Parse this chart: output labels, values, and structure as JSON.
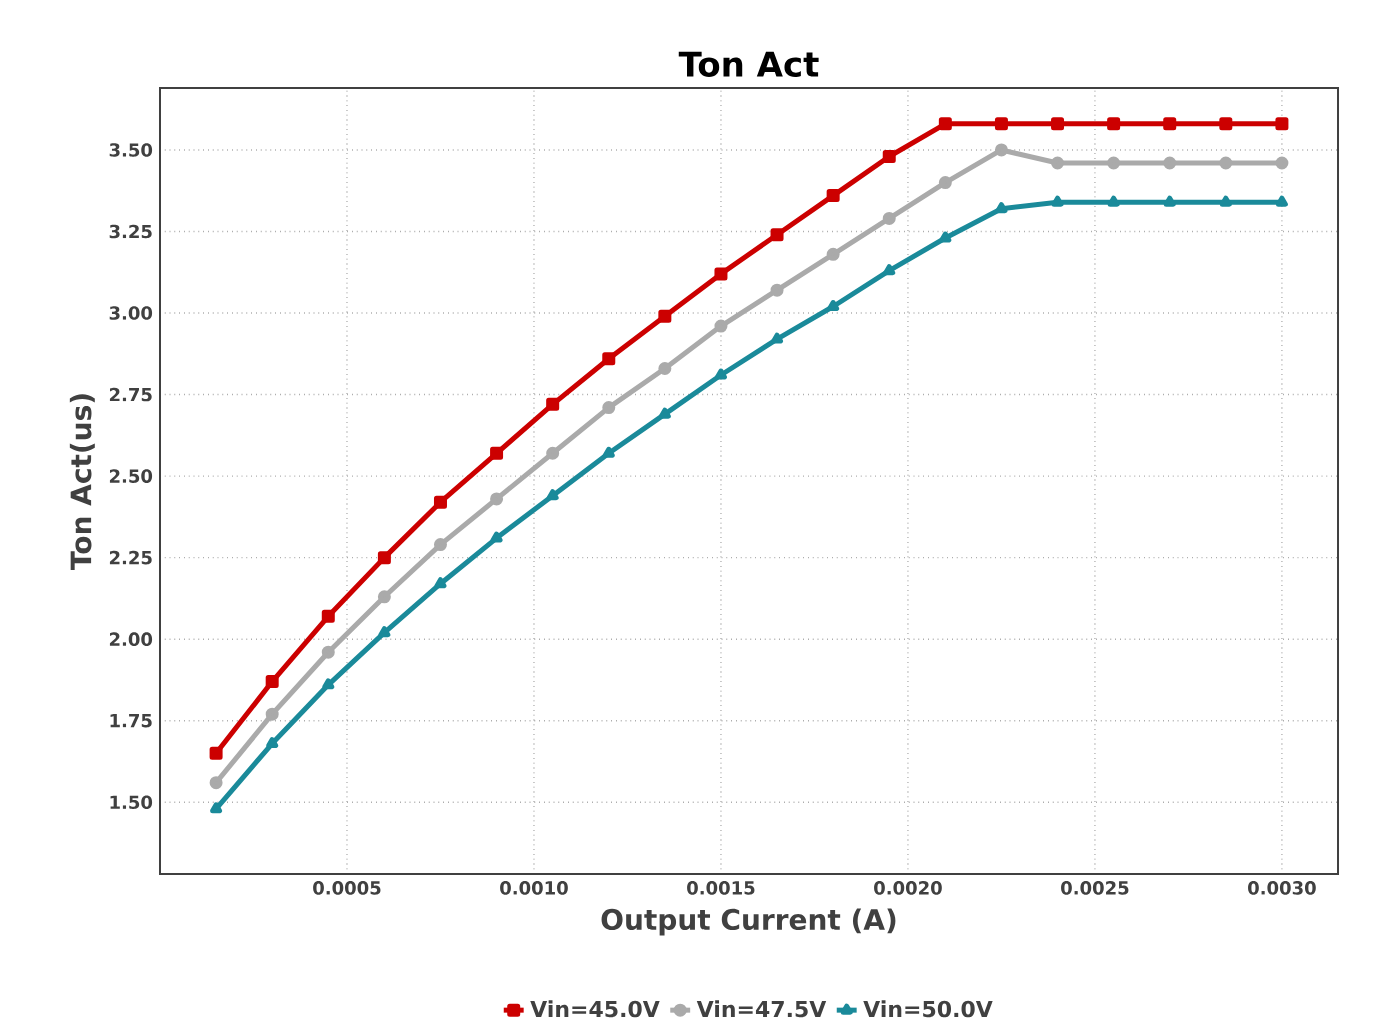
{
  "chart_data": {
    "type": "line",
    "title": "Ton Act",
    "xlabel": "Output Current (A)",
    "ylabel": "Ton Act(us)",
    "x": [
      0.00015,
      0.0003,
      0.00045,
      0.0006,
      0.00075,
      0.0009,
      0.00105,
      0.0012,
      0.00135,
      0.0015,
      0.00165,
      0.0018,
      0.00195,
      0.0021,
      0.00225,
      0.0024,
      0.00255,
      0.0027,
      0.00285,
      0.003
    ],
    "series": [
      {
        "name": "Vin=45.0V",
        "color": "#cc0000",
        "marker": "square",
        "values": [
          1.65,
          1.87,
          2.07,
          2.25,
          2.42,
          2.57,
          2.72,
          2.86,
          2.99,
          3.12,
          3.24,
          3.36,
          3.48,
          3.58,
          3.58,
          3.58,
          3.58,
          3.58,
          3.58,
          3.58
        ]
      },
      {
        "name": "Vin=47.5V",
        "color": "#aaaaaa",
        "marker": "circle",
        "values": [
          1.56,
          1.77,
          1.96,
          2.13,
          2.29,
          2.43,
          2.57,
          2.71,
          2.83,
          2.96,
          3.07,
          3.18,
          3.29,
          3.4,
          3.5,
          3.46,
          3.46,
          3.46,
          3.46,
          3.46
        ]
      },
      {
        "name": "Vin=50.0V",
        "color": "#1a8a9a",
        "marker": "triangle",
        "values": [
          1.48,
          1.68,
          1.86,
          2.02,
          2.17,
          2.31,
          2.44,
          2.57,
          2.69,
          2.81,
          2.92,
          3.02,
          3.13,
          3.23,
          3.32,
          3.34,
          3.34,
          3.34,
          3.34,
          3.34
        ]
      }
    ],
    "xlim": [
      0,
      0.00315
    ],
    "ylim": [
      1.28,
      3.69
    ],
    "xticks": [
      {
        "value": 0.0005,
        "label": "0.0005"
      },
      {
        "value": 0.001,
        "label": "0.0010"
      },
      {
        "value": 0.0015,
        "label": "0.0015"
      },
      {
        "value": 0.002,
        "label": "0.0020"
      },
      {
        "value": 0.0025,
        "label": "0.0025"
      },
      {
        "value": 0.003,
        "label": "0.0030"
      }
    ],
    "yticks": [
      {
        "value": 1.5,
        "label": "1.50"
      },
      {
        "value": 1.75,
        "label": "1.75"
      },
      {
        "value": 2.0,
        "label": "2.00"
      },
      {
        "value": 2.25,
        "label": "2.25"
      },
      {
        "value": 2.5,
        "label": "2.50"
      },
      {
        "value": 2.75,
        "label": "2.75"
      },
      {
        "value": 3.0,
        "label": "3.00"
      },
      {
        "value": 3.25,
        "label": "3.25"
      },
      {
        "value": 3.5,
        "label": "3.50"
      }
    ],
    "grid": true,
    "legend": "bottom",
    "line_style": "solid"
  }
}
